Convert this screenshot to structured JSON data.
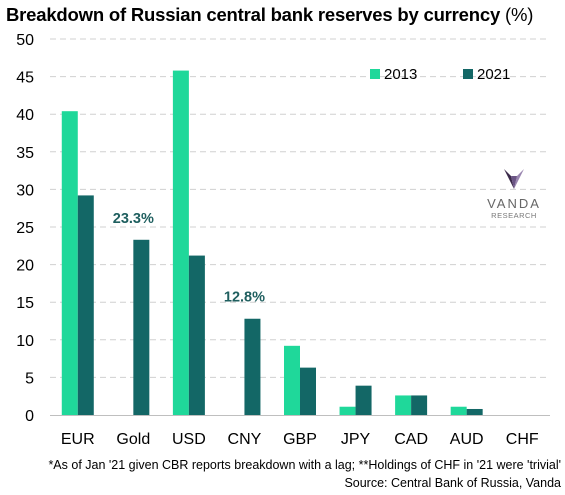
{
  "header": {
    "title": "Breakdown of Russian central bank reserves by currency",
    "title_unit": "(%)"
  },
  "logo": {
    "name": "VANDA",
    "sub": "RESEARCH"
  },
  "footnotes": {
    "line1": "*As of Jan '21 given CBR reports breakdown with a lag; **Holdings of CHF in '21 were 'trivial'",
    "line2": "Source: Central Bank of Russia, Vanda"
  },
  "colors": {
    "series_2013": "#1fd89a",
    "series_2021": "#136766",
    "grid": "#d0d0d0",
    "data_label": "#1f5f5f"
  },
  "chart_data": {
    "type": "bar",
    "title": "Breakdown of Russian central bank reserves by currency (%)",
    "xlabel": "",
    "ylabel": "",
    "ylim": [
      0,
      50
    ],
    "yticks": [
      0,
      5,
      10,
      15,
      20,
      25,
      30,
      35,
      40,
      45,
      50
    ],
    "grid": true,
    "legend_position": "top-right",
    "categories": [
      "EUR",
      "Gold",
      "USD",
      "CNY",
      "GBP",
      "JPY",
      "CAD",
      "AUD",
      "CHF"
    ],
    "series": [
      {
        "name": "2013",
        "values": [
          40.4,
          0,
          45.8,
          0,
          9.2,
          1.1,
          2.6,
          1.1,
          0
        ]
      },
      {
        "name": "2021",
        "values": [
          29.2,
          23.3,
          21.2,
          12.8,
          6.3,
          3.9,
          2.6,
          0.8,
          0
        ]
      }
    ],
    "annotations": [
      {
        "category": "Gold",
        "series": "2021",
        "text": "23.3%"
      },
      {
        "category": "CNY",
        "series": "2021",
        "text": "12.8%"
      }
    ]
  }
}
